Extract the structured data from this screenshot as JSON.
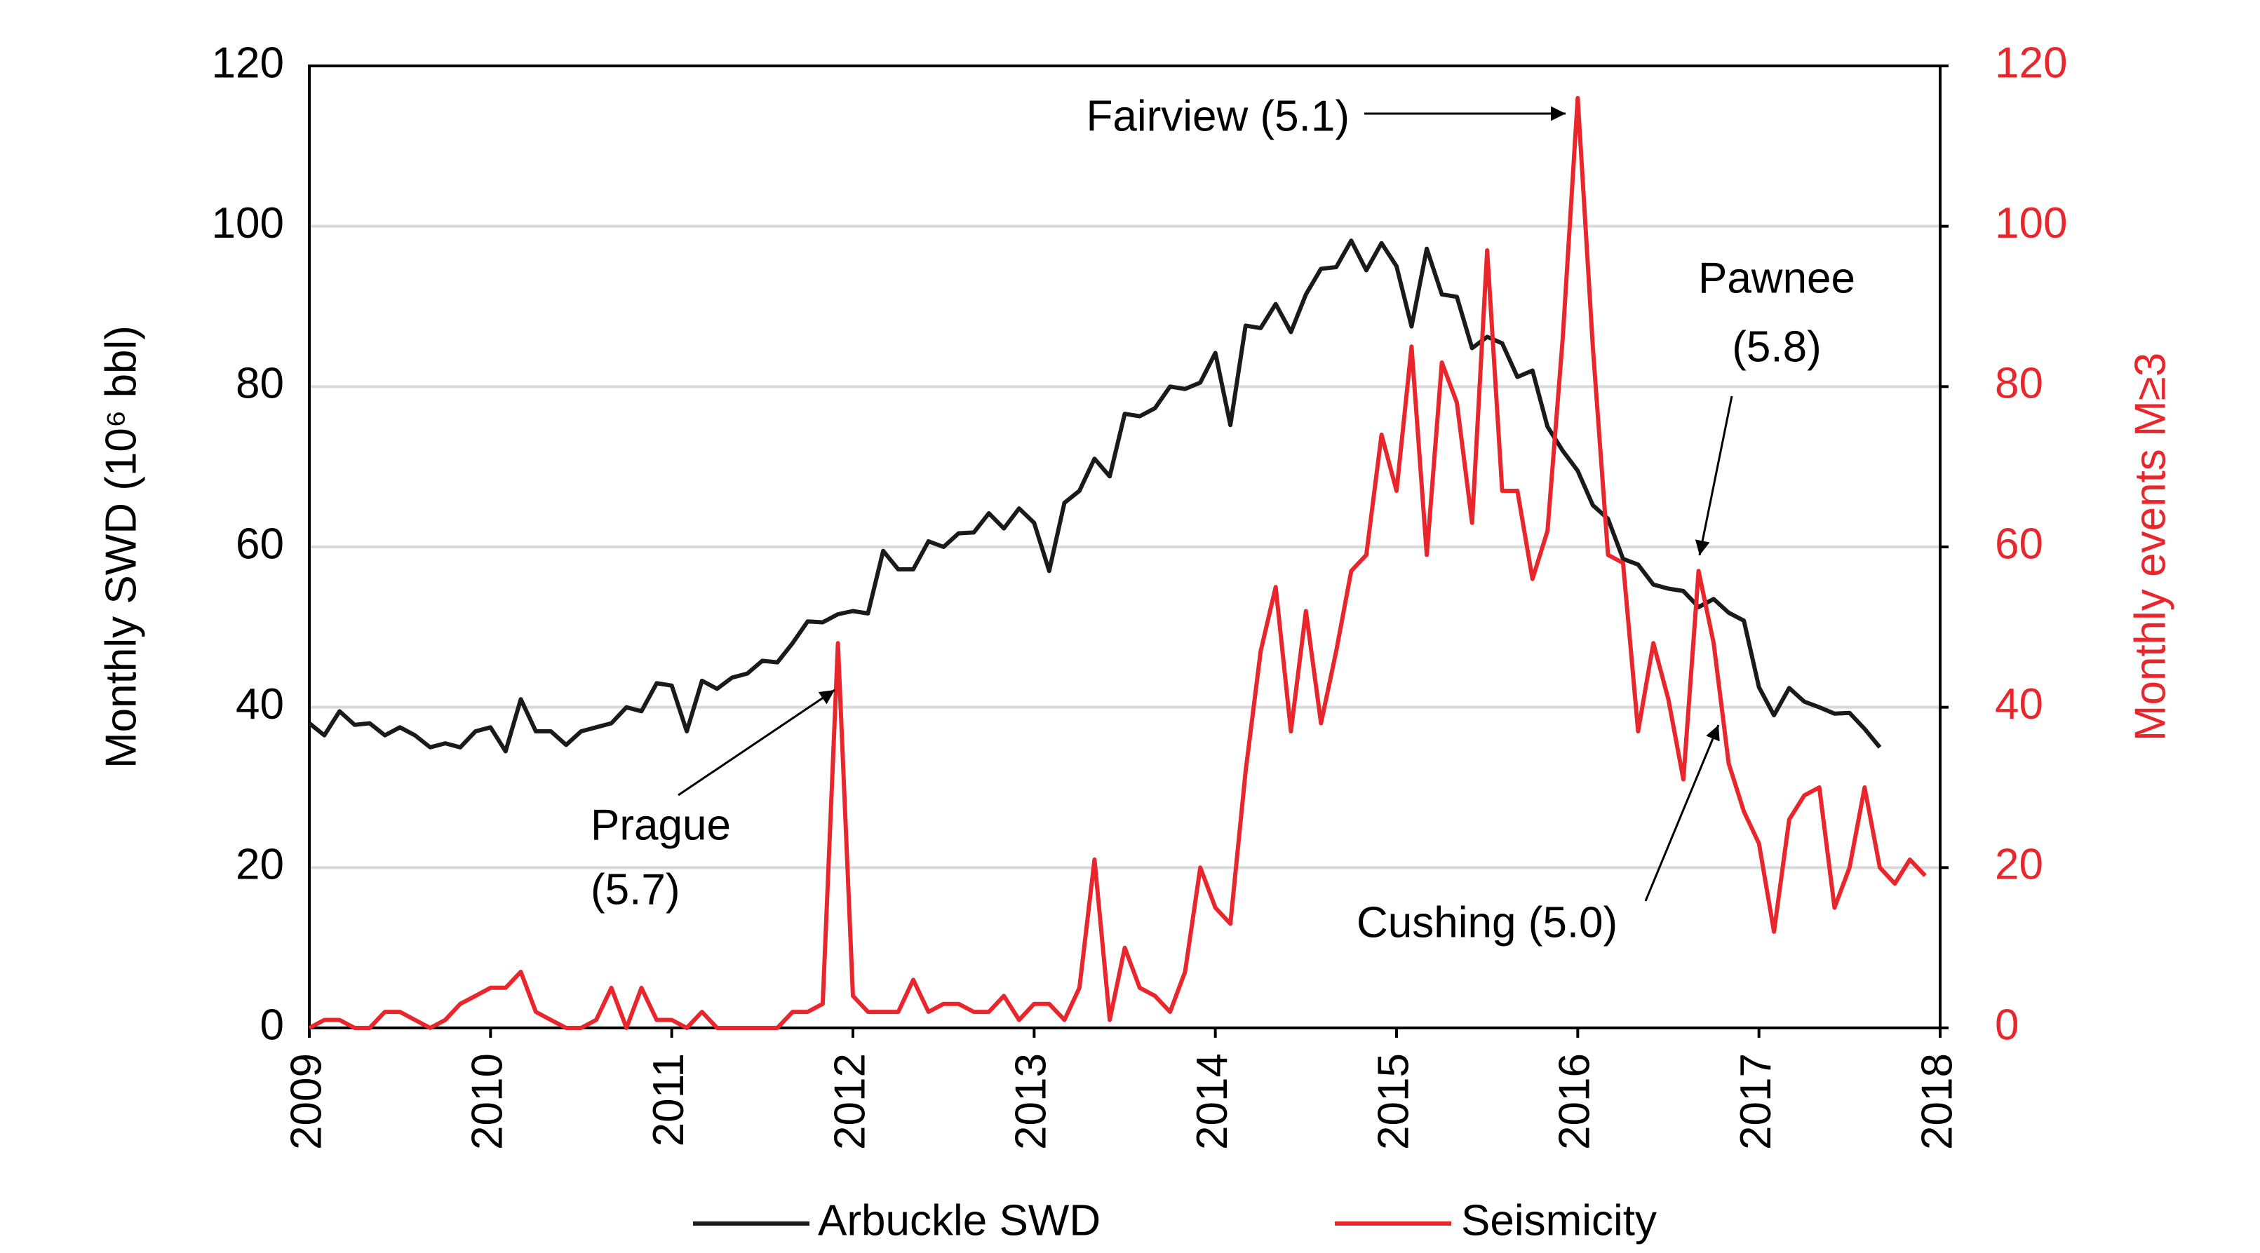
{
  "chart_data": {
    "type": "line",
    "xlim": [
      2009,
      2018
    ],
    "xticks": [
      2009,
      2010,
      2011,
      2012,
      2013,
      2014,
      2015,
      2016,
      2017,
      2018
    ],
    "ylabel": "Monthly SWD (10⁶ bbl)",
    "ylim": [
      0,
      120
    ],
    "yticks": [
      0,
      20,
      40,
      60,
      80,
      100,
      120
    ],
    "y2label": "Monthly events M≥3",
    "y2lim": [
      0,
      120
    ],
    "y2ticks": [
      0,
      20,
      40,
      60,
      80,
      100,
      120
    ],
    "grid": true,
    "legend": "bottom",
    "x": [
      2009,
      2009.083,
      2009.167,
      2009.25,
      2009.333,
      2009.417,
      2009.5,
      2009.583,
      2009.667,
      2009.75,
      2009.833,
      2009.917,
      2010,
      2010.083,
      2010.167,
      2010.25,
      2010.333,
      2010.417,
      2010.5,
      2010.583,
      2010.667,
      2010.75,
      2010.833,
      2010.917,
      2011,
      2011.083,
      2011.167,
      2011.25,
      2011.333,
      2011.417,
      2011.5,
      2011.583,
      2011.667,
      2011.75,
      2011.833,
      2011.917,
      2012,
      2012.083,
      2012.167,
      2012.25,
      2012.333,
      2012.417,
      2012.5,
      2012.583,
      2012.667,
      2012.75,
      2012.833,
      2012.917,
      2013,
      2013.083,
      2013.167,
      2013.25,
      2013.333,
      2013.417,
      2013.5,
      2013.583,
      2013.667,
      2013.75,
      2013.833,
      2013.917,
      2014,
      2014.083,
      2014.167,
      2014.25,
      2014.333,
      2014.417,
      2014.5,
      2014.583,
      2014.667,
      2014.75,
      2014.833,
      2014.917,
      2015,
      2015.083,
      2015.167,
      2015.25,
      2015.333,
      2015.417,
      2015.5,
      2015.583,
      2015.667,
      2015.75,
      2015.833,
      2015.917,
      2016,
      2016.083,
      2016.167,
      2016.25,
      2016.333,
      2016.417,
      2016.5,
      2016.583,
      2016.667,
      2016.75,
      2016.833,
      2016.917,
      2017,
      2017.083,
      2017.167,
      2017.25,
      2017.333,
      2017.417,
      2017.5,
      2017.583,
      2017.667,
      2017.75,
      2017.833,
      2017.917
    ],
    "series": [
      {
        "name": "Arbuckle SWD",
        "color": "#1a1a1a",
        "axis": "y",
        "values": [
          38,
          36.5,
          39.5,
          37.8,
          38,
          36.5,
          37.5,
          36.5,
          35,
          35.5,
          35,
          37,
          37.5,
          34.5,
          41,
          37,
          37,
          35.3,
          37,
          37.5,
          38,
          40,
          39.5,
          43,
          42.7,
          37,
          43.3,
          42.3,
          43.7,
          44.2,
          45.8,
          45.6,
          48,
          50.7,
          50.6,
          51.6,
          52,
          51.7,
          59.5,
          57.2,
          57.2,
          60.7,
          60,
          61.7,
          61.8,
          64.2,
          62.3,
          64.8,
          63,
          57,
          65.5,
          67,
          71,
          68.8,
          76.6,
          76.3,
          77.3,
          80,
          79.7,
          80.5,
          84.2,
          75.2,
          87.6,
          87.3,
          90.3,
          86.8,
          91.5,
          94.7,
          94.9,
          98.2,
          94.5,
          97.9,
          95,
          87.5,
          97.2,
          91.5,
          91.2,
          84.8,
          86.2,
          85.4,
          81.2,
          82,
          75,
          72,
          69.5,
          65.2,
          63.5,
          58.5,
          57.8,
          55.3,
          54.8,
          54.5,
          52.5,
          53.5,
          51.8,
          50.8,
          42.5,
          39,
          42.4,
          40.7,
          40,
          39.2,
          39.3,
          37.3,
          35,
          null,
          null,
          null
        ]
      },
      {
        "name": "Seismicity",
        "color": "#e8262b",
        "axis": "y2",
        "values": [
          0,
          1,
          1,
          0,
          0,
          2,
          2,
          1,
          0,
          1,
          3,
          4,
          5,
          5,
          7,
          2,
          1,
          0,
          0,
          1,
          5,
          0,
          5,
          1,
          1,
          0,
          2,
          0,
          0,
          0,
          0,
          0,
          2,
          2,
          3,
          48,
          4,
          2,
          2,
          2,
          6,
          2,
          3,
          3,
          2,
          2,
          4,
          1,
          3,
          3,
          1,
          5,
          21,
          1,
          10,
          5,
          4,
          2,
          7,
          20,
          15,
          13,
          32,
          47,
          55,
          37,
          52,
          38,
          47,
          57,
          59,
          74,
          67,
          85,
          59,
          83,
          78,
          63,
          97,
          67,
          67,
          56,
          62,
          86,
          116,
          85,
          59,
          58,
          37,
          48,
          41,
          31,
          57,
          48,
          33,
          27,
          23,
          12,
          26,
          29,
          30,
          15,
          20,
          30,
          20,
          18,
          21,
          19
        ]
      }
    ],
    "annotations": [
      {
        "text": [
          "Fairview (5.1)"
        ]
      },
      {
        "text": [
          "Pawnee",
          "(5.8)"
        ]
      },
      {
        "text": [
          "Prague",
          "(5.7)"
        ]
      },
      {
        "text": [
          "Cushing (5.0)"
        ]
      }
    ]
  }
}
